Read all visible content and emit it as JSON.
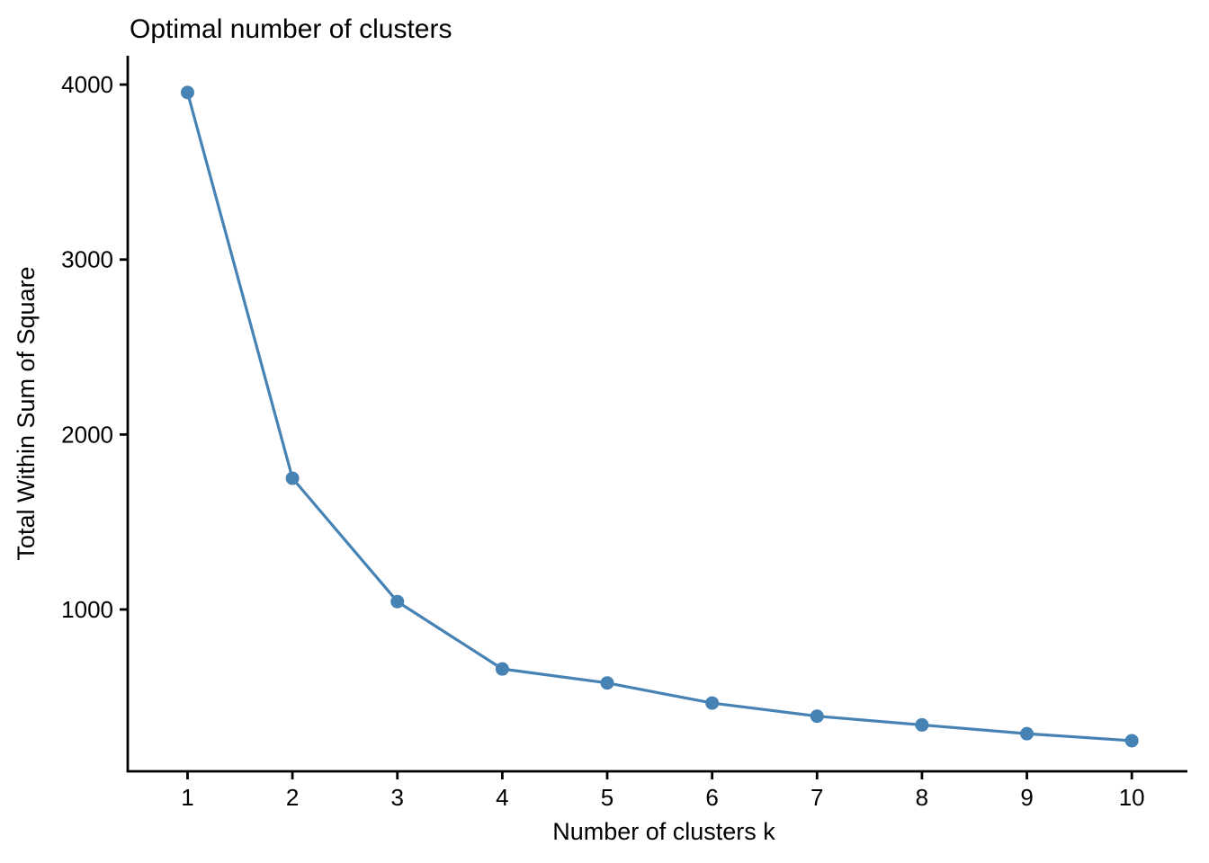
{
  "chart_data": {
    "type": "line",
    "title": "Optimal number of clusters",
    "xlabel": "Number of clusters k",
    "ylabel": "Total Within Sum of Square",
    "x": [
      1,
      2,
      3,
      4,
      5,
      6,
      7,
      8,
      9,
      10
    ],
    "values": [
      3955,
      1750,
      1045,
      660,
      580,
      465,
      390,
      340,
      290,
      250
    ],
    "x_tick_labels": [
      "1",
      "2",
      "3",
      "4",
      "5",
      "6",
      "7",
      "8",
      "9",
      "10"
    ],
    "x_ticks": [
      1,
      2,
      3,
      4,
      5,
      6,
      7,
      8,
      9,
      10
    ],
    "y_tick_labels": [
      "1000",
      "2000",
      "3000",
      "4000"
    ],
    "y_ticks": [
      1000,
      2000,
      3000,
      4000
    ],
    "xlim": [
      0.43,
      10.53
    ],
    "ylim": [
      75,
      4165
    ],
    "grid": false,
    "legend": "none",
    "line_color": "#4682B4",
    "marker": "circle",
    "axis_color": "#000000",
    "background": "#FFFFFF"
  }
}
